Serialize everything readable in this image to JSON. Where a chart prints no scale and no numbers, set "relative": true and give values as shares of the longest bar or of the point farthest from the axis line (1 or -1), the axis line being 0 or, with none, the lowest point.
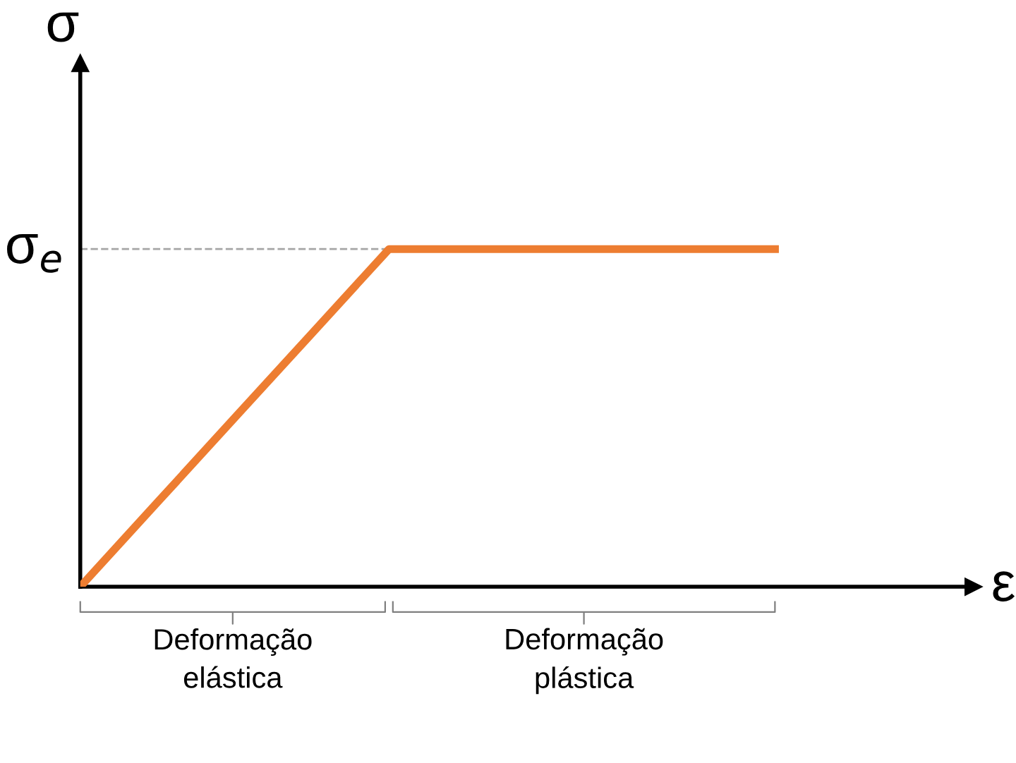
{
  "chart_data": {
    "type": "line",
    "relative": true,
    "xlabel": "ε",
    "ylabel": "σ",
    "categories": [
      null,
      null,
      null,
      null,
      null,
      null,
      null,
      null,
      null,
      null
    ],
    "series": [
      {
        "color": "#ed7d31",
        "values": [
          0,
          0.25,
          0.5,
          0.75,
          1,
          1,
          1,
          1,
          1,
          1
        ]
      }
    ],
    "ref_lines": [
      {
        "axis": "y",
        "value": 1,
        "label": "σ$_{e}$",
        "color": "#a6a6a6",
        "line_style": "dashed"
      }
    ],
    "annotations": [
      "Deformação\nelástica",
      "Deformação\nplástica"
    ],
    "legend": false,
    "marker": "none",
    "line_style": "solid",
    "tick_labels": false
  }
}
